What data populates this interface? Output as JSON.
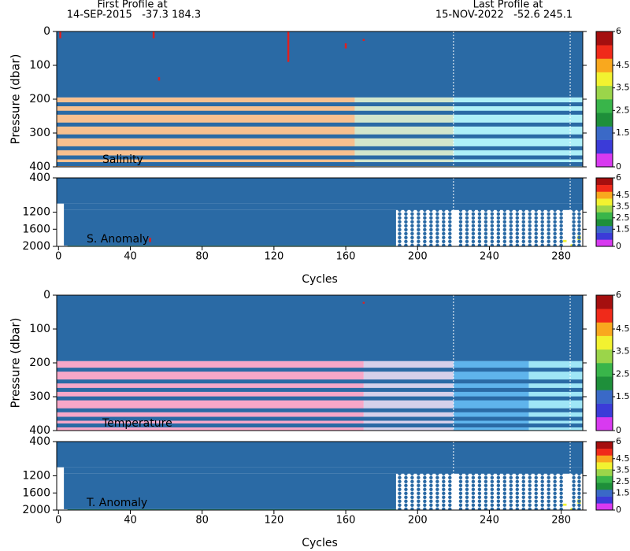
{
  "header": {
    "first_label": "First Profile at",
    "first_info": "14-SEP-2015   -37.3 184.3",
    "last_label": "Last Profile at",
    "last_info": "15-NOV-2022   -52.6 245.1"
  },
  "chart_data": [
    {
      "type": "heatmap",
      "label": "Salinity",
      "ylabel": "Pressure (dbar)",
      "xlim": [
        -1,
        292
      ],
      "ylim": [
        400,
        0
      ],
      "yticks": [
        0,
        100,
        200,
        300,
        400
      ],
      "regions": [
        {
          "x": [
            -1,
            292
          ],
          "y": [
            0,
            195
          ],
          "color": "#2a6aa5"
        },
        {
          "x": [
            -1,
            165
          ],
          "y": [
            195,
            400
          ],
          "color": "#f8c08f"
        },
        {
          "x": [
            165,
            220
          ],
          "y": [
            195,
            400
          ],
          "color": "#d2e6cc"
        },
        {
          "x": [
            220,
            292
          ],
          "y": [
            195,
            400
          ],
          "color": "#aef0f8"
        }
      ],
      "isobars": [
        215,
        240,
        275,
        310,
        345,
        372,
        392
      ],
      "isobar_color": "#2a6aa5",
      "spikes": [
        {
          "x": 128,
          "y": [
            0,
            90
          ]
        },
        {
          "x": 53,
          "y": [
            0,
            20
          ]
        },
        {
          "x": 160,
          "y": [
            35,
            50
          ]
        },
        {
          "x": 1,
          "y": [
            0,
            20
          ]
        },
        {
          "x": 170,
          "y": [
            22,
            28
          ]
        },
        {
          "x": 56,
          "y": [
            135,
            145
          ]
        }
      ],
      "spike_color": "#e02020",
      "markers": [
        220,
        285
      ],
      "colorbar": {
        "clim": [
          0,
          6
        ],
        "colors": [
          "#d83af0",
          "#3b3bd8",
          "#3a69c7",
          "#1e8f3a",
          "#39b54a",
          "#9bd54a",
          "#f2f230",
          "#f9a81e",
          "#f02a1a",
          "#a50f0f"
        ],
        "ticks": [
          0,
          1.5,
          2.5,
          3.5,
          4.5,
          6
        ]
      }
    },
    {
      "type": "anomaly",
      "label": "S. Anomaly",
      "xlabel": "Cycles",
      "xlim": [
        -1,
        292
      ],
      "ylim": [
        2000,
        400
      ],
      "yticks": [
        400,
        1200,
        1600,
        2000
      ],
      "xticks": [
        0,
        40,
        80,
        120,
        160,
        200,
        240,
        280
      ],
      "regions": [
        {
          "x": [
            -1,
            292
          ],
          "y": [
            400,
            1000
          ],
          "color": "#2a6aa5"
        },
        {
          "x": [
            3,
            292
          ],
          "y": [
            1000,
            1150
          ],
          "color": "#2a6aa5"
        },
        {
          "x": [
            3,
            188
          ],
          "y": [
            1150,
            1980
          ],
          "color": "#2a6aa5"
        },
        {
          "x": [
            5,
            188
          ],
          "y": [
            1980,
            2000
          ],
          "color": "#3aa68a"
        },
        {
          "x": [
            281,
            283
          ],
          "y": [
            1850,
            1900
          ],
          "color": "#f2f230"
        },
        {
          "x": [
            285,
            287
          ],
          "y": [
            1950,
            2000
          ],
          "color": "#f2f230"
        },
        {
          "x": [
            289,
            291
          ],
          "y": [
            1750,
            1850
          ],
          "color": "#f2f230"
        }
      ],
      "columns": [
        190,
        193.5,
        197,
        200.5,
        204,
        207.5,
        211,
        214.5,
        218,
        224,
        227.5,
        231,
        234.5,
        238,
        241.5,
        245,
        248.5,
        252,
        255.5,
        259,
        262.5,
        266,
        269.5,
        273,
        276.5,
        280,
        287,
        290
      ],
      "column_range": [
        1150,
        1980
      ],
      "column_color": "#2a6aa5",
      "spikes": [
        {
          "x": 51,
          "y": [
            1800,
            1900
          ]
        }
      ],
      "spike_color": "#e02020",
      "markers": [
        220,
        285
      ],
      "colorbar": {
        "clim": [
          0,
          6
        ],
        "colors": [
          "#d83af0",
          "#3b3bd8",
          "#3a69c7",
          "#1e8f3a",
          "#39b54a",
          "#9bd54a",
          "#f2f230",
          "#f9a81e",
          "#f02a1a",
          "#a50f0f"
        ],
        "ticks": [
          0,
          1.5,
          2.5,
          3.5,
          4.5,
          6
        ]
      }
    },
    {
      "type": "heatmap",
      "label": "Temperature",
      "ylabel": "Pressure (dbar)",
      "xlim": [
        -1,
        292
      ],
      "ylim": [
        400,
        0
      ],
      "yticks": [
        0,
        100,
        200,
        300,
        400
      ],
      "regions": [
        {
          "x": [
            -1,
            292
          ],
          "y": [
            0,
            195
          ],
          "color": "#2a6aa5"
        },
        {
          "x": [
            -1,
            170
          ],
          "y": [
            195,
            400
          ],
          "color": "#f7a7c8"
        },
        {
          "x": [
            170,
            220
          ],
          "y": [
            195,
            400
          ],
          "color": "#d6d0ea"
        },
        {
          "x": [
            220,
            262
          ],
          "y": [
            195,
            400
          ],
          "color": "#5fb4ec"
        },
        {
          "x": [
            262,
            292
          ],
          "y": [
            195,
            400
          ],
          "color": "#9fe6f6"
        }
      ],
      "isobars": [
        220,
        255,
        280,
        305,
        340,
        365,
        385
      ],
      "isobar_color": "#2a6aa5",
      "spikes": [
        {
          "x": 170,
          "y": [
            20,
            25
          ]
        }
      ],
      "spike_color": "#e02020",
      "markers": [
        220,
        285
      ],
      "colorbar": {
        "clim": [
          0,
          6
        ],
        "colors": [
          "#d83af0",
          "#3b3bd8",
          "#3a69c7",
          "#1e8f3a",
          "#39b54a",
          "#9bd54a",
          "#f2f230",
          "#f9a81e",
          "#f02a1a",
          "#a50f0f"
        ],
        "ticks": [
          0,
          1.5,
          2.5,
          3.5,
          4.5,
          6
        ]
      }
    },
    {
      "type": "anomaly",
      "label": "T. Anomaly",
      "xlabel": "Cycles",
      "xlim": [
        -1,
        292
      ],
      "ylim": [
        2000,
        400
      ],
      "yticks": [
        400,
        1200,
        1600,
        2000
      ],
      "xticks": [
        0,
        40,
        80,
        120,
        160,
        200,
        240,
        280
      ],
      "regions": [
        {
          "x": [
            -1,
            292
          ],
          "y": [
            400,
            1000
          ],
          "color": "#2a6aa5"
        },
        {
          "x": [
            3,
            292
          ],
          "y": [
            1000,
            1150
          ],
          "color": "#2a6aa5"
        },
        {
          "x": [
            3,
            188
          ],
          "y": [
            1150,
            1980
          ],
          "color": "#2a6aa5"
        },
        {
          "x": [
            5,
            188
          ],
          "y": [
            1980,
            2000
          ],
          "color": "#3aa68a"
        },
        {
          "x": [
            281,
            283
          ],
          "y": [
            1850,
            1900
          ],
          "color": "#f2f230"
        },
        {
          "x": [
            285,
            287
          ],
          "y": [
            1950,
            2000
          ],
          "color": "#f2f230"
        },
        {
          "x": [
            289,
            291
          ],
          "y": [
            1750,
            1850
          ],
          "color": "#f2f230"
        }
      ],
      "columns": [
        190,
        193.5,
        197,
        200.5,
        204,
        207.5,
        211,
        214.5,
        218,
        224,
        227.5,
        231,
        234.5,
        238,
        241.5,
        245,
        248.5,
        252,
        255.5,
        259,
        262.5,
        266,
        269.5,
        273,
        276.5,
        280,
        287,
        290
      ],
      "column_range": [
        1150,
        1980
      ],
      "column_color": "#2a6aa5",
      "markers": [
        220,
        285
      ],
      "colorbar": {
        "clim": [
          0,
          6
        ],
        "colors": [
          "#d83af0",
          "#3b3bd8",
          "#3a69c7",
          "#1e8f3a",
          "#39b54a",
          "#9bd54a",
          "#f2f230",
          "#f9a81e",
          "#f02a1a",
          "#a50f0f"
        ],
        "ticks": [
          0,
          1.5,
          2.5,
          3.5,
          4.5,
          6
        ]
      }
    }
  ]
}
